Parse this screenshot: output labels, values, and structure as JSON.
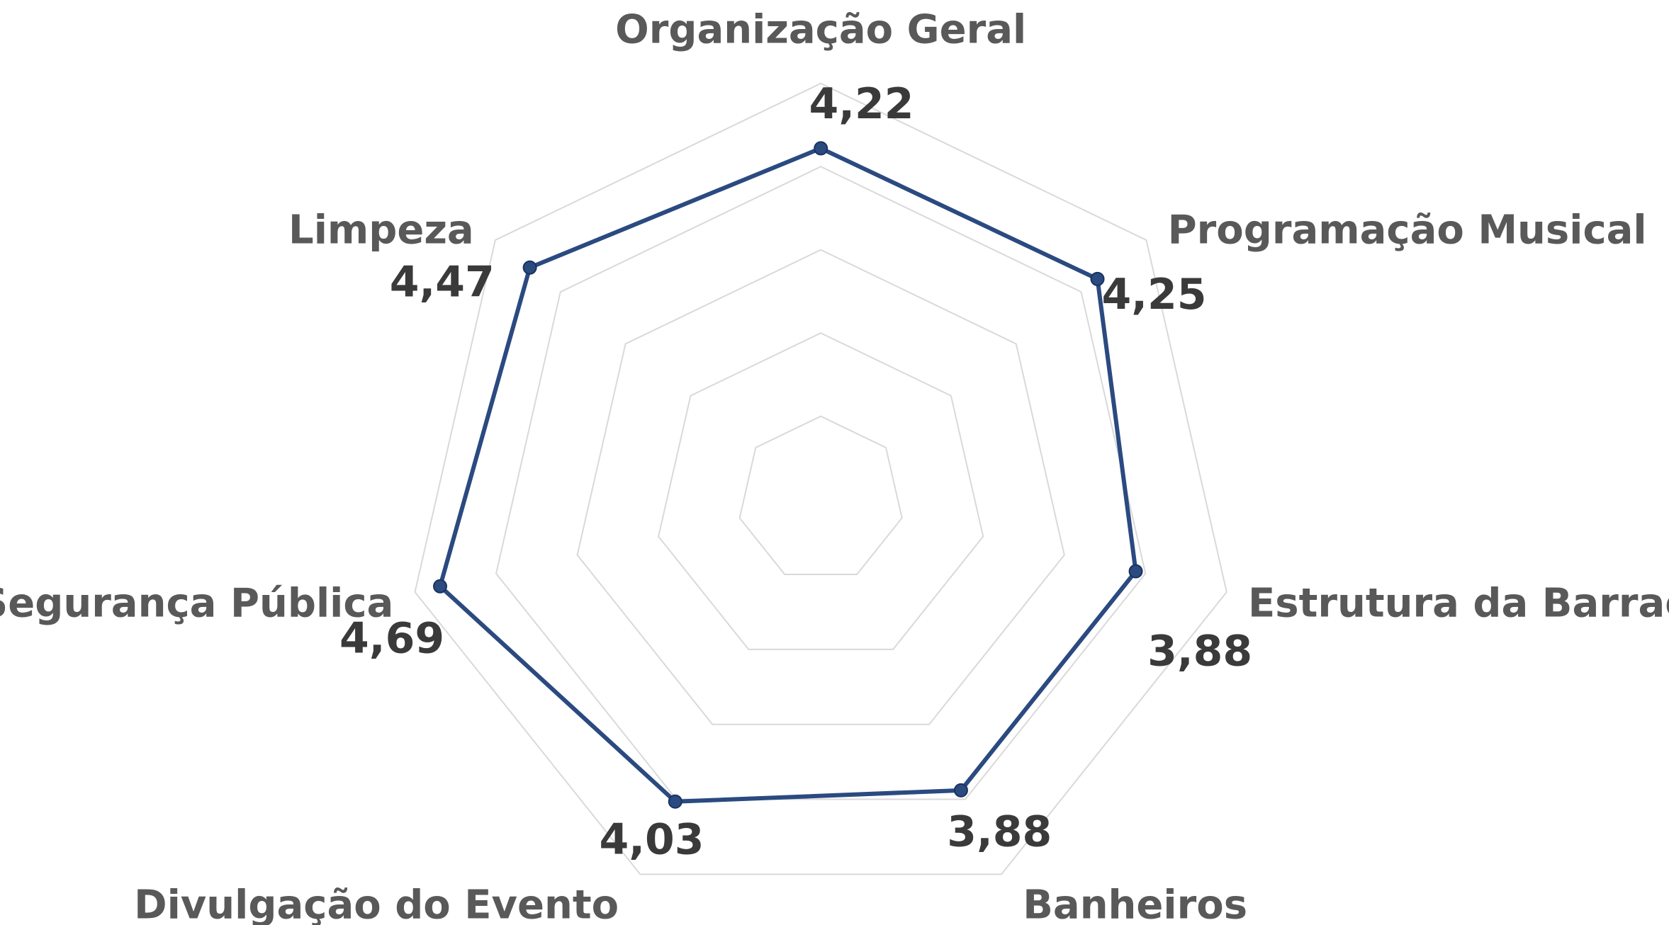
{
  "chart_data": {
    "type": "radar",
    "categories": [
      "Organização Geral",
      "Programação Musical",
      "Estrutura da Barraca",
      "Banheiros",
      "Divulgação do Evento",
      "Segurança Pública",
      "Limpeza"
    ],
    "values": [
      4.22,
      4.25,
      3.88,
      3.88,
      4.03,
      4.69,
      4.47
    ],
    "value_labels": [
      "4,22",
      "4,25",
      "3,88",
      "3,88",
      "4,03",
      "4,69",
      "4,47"
    ],
    "color": "#2a4a80",
    "ylim": [
      0,
      5
    ],
    "yticks": [
      1,
      2,
      3,
      4,
      5
    ],
    "grid": true
  }
}
